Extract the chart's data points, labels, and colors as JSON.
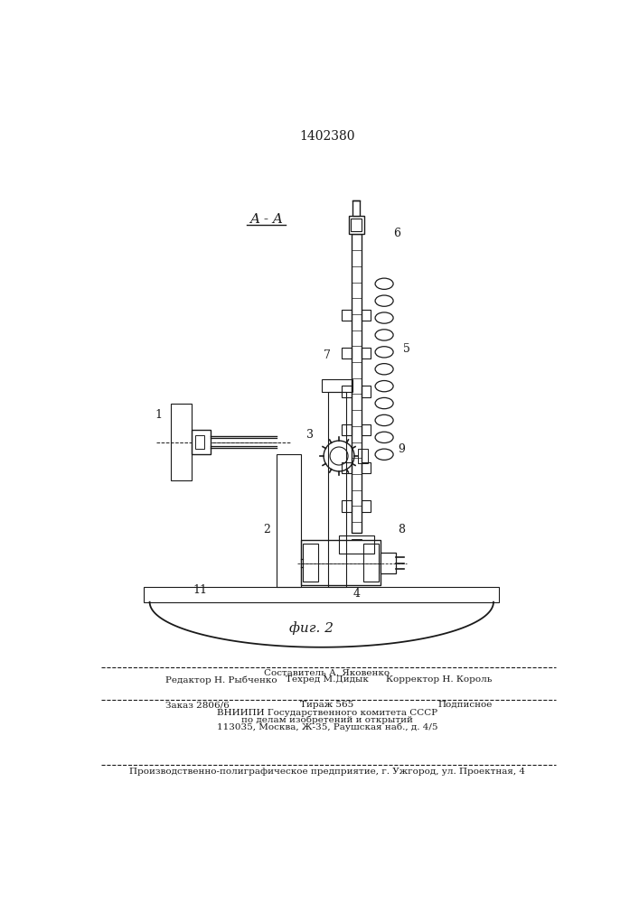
{
  "patent_number": "1402380",
  "section_label": "A - A",
  "figure_label": "фиг. 2",
  "line_color": "#1a1a1a",
  "footer_line1_left": "Редактор Н. Рыбченко",
  "footer_line1_center": "Техред М.Дидык",
  "footer_line1_right": "Корректор Н. Король",
  "footer_line1_top": "Составитель А. Яковенко",
  "footer_line2_left": "Заказ 2806/6",
  "footer_line2_center": "Тираж 565",
  "footer_line2_right": "Подписное",
  "footer_line3": "ВНИИПИ Государственного комитета СССР",
  "footer_line4": "по делам изобретений и открытий",
  "footer_line5": "113035, Москва, Ж-35, Раушская наб., д. 4/5",
  "footer_last": "Производственно-полиграфическое предприятие, г. Ужгород, ул. Проектная, 4"
}
